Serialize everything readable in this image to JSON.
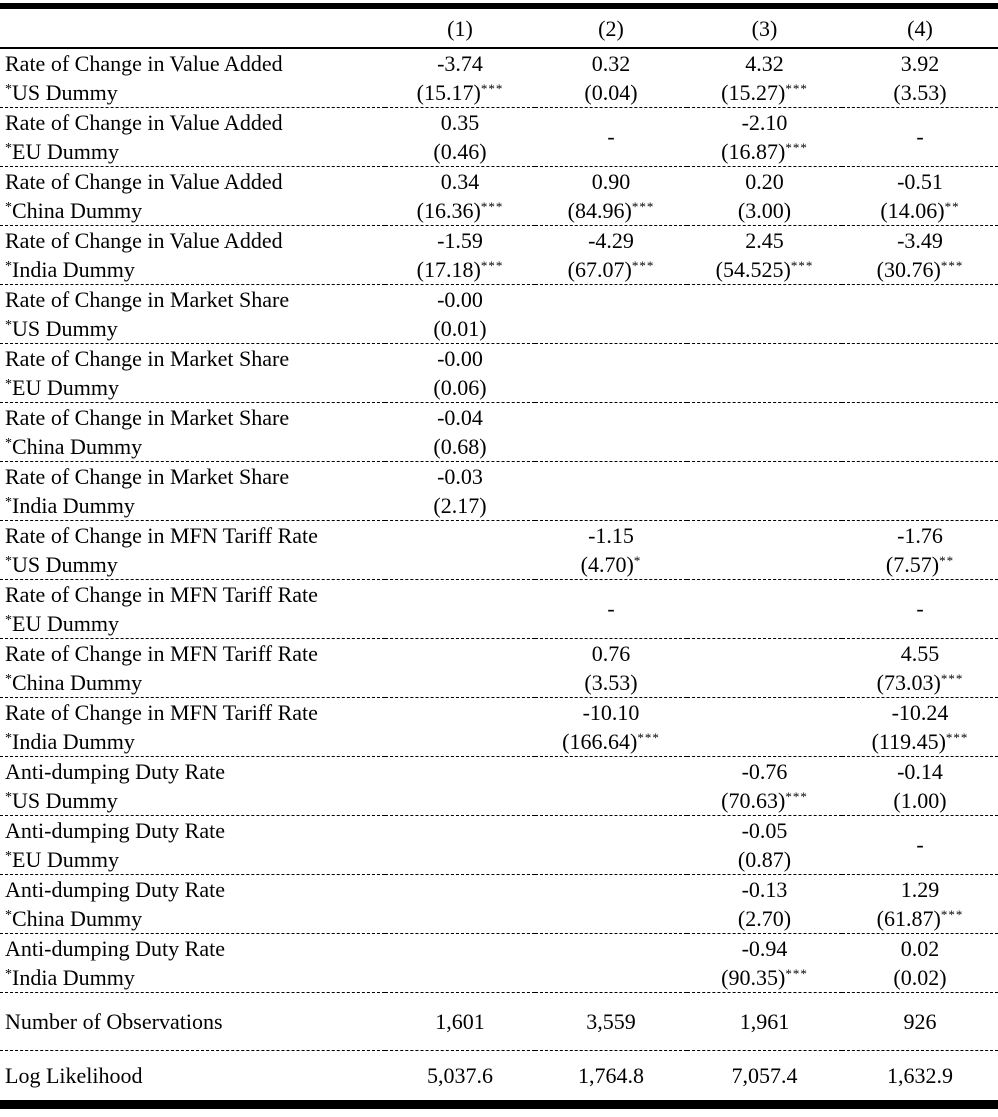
{
  "colors": {
    "text": "#000000",
    "background": "#ffffff",
    "rule": "#000000"
  },
  "table": {
    "column_headers": [
      "(1)",
      "(2)",
      "(3)",
      "(4)"
    ],
    "rows": [
      {
        "label1": "Rate of Change in Value Added",
        "label2": "*US Dummy",
        "cells": [
          {
            "v": "-3.74",
            "t": "(15.17)",
            "s": "***"
          },
          {
            "v": "0.32",
            "t": "(0.04)",
            "s": ""
          },
          {
            "v": "4.32",
            "t": "(15.27)",
            "s": "***"
          },
          {
            "v": "3.92",
            "t": "(3.53)",
            "s": ""
          }
        ]
      },
      {
        "label1": "Rate of Change in Value Added",
        "label2": "*EU Dummy",
        "cells": [
          {
            "v": "0.35",
            "t": "(0.46)",
            "s": ""
          },
          {
            "dash": "-"
          },
          {
            "v": "-2.10",
            "t": "(16.87)",
            "s": "***"
          },
          {
            "dash": "-"
          }
        ]
      },
      {
        "label1": "Rate of Change in Value Added",
        "label2": "*China Dummy",
        "cells": [
          {
            "v": "0.34",
            "t": "(16.36)",
            "s": "***"
          },
          {
            "v": "0.90",
            "t": "(84.96)",
            "s": "***"
          },
          {
            "v": "0.20",
            "t": "(3.00)",
            "s": ""
          },
          {
            "v": "-0.51",
            "t": "(14.06)",
            "s": "**"
          }
        ]
      },
      {
        "label1": "Rate of Change in Value Added",
        "label2": "*India Dummy",
        "cells": [
          {
            "v": "-1.59",
            "t": "(17.18)",
            "s": "***"
          },
          {
            "v": "-4.29",
            "t": "(67.07)",
            "s": "***"
          },
          {
            "v": "2.45",
            "t": "(54.525)",
            "s": "***"
          },
          {
            "v": "-3.49",
            "t": "(30.76)",
            "s": "***"
          }
        ]
      },
      {
        "label1": "Rate of Change in Market Share",
        "label2": "*US Dummy",
        "cells": [
          {
            "v": "-0.00",
            "t": "(0.01)",
            "s": ""
          },
          null,
          null,
          null
        ]
      },
      {
        "label1": "Rate of Change in Market Share",
        "label2": "*EU Dummy",
        "cells": [
          {
            "v": "-0.00",
            "t": "(0.06)",
            "s": ""
          },
          null,
          null,
          null
        ]
      },
      {
        "label1": "Rate of Change in Market Share",
        "label2": "*China Dummy",
        "cells": [
          {
            "v": "-0.04",
            "t": "(0.68)",
            "s": ""
          },
          null,
          null,
          null
        ]
      },
      {
        "label1": "Rate of Change in Market Share",
        "label2": "*India Dummy",
        "cells": [
          {
            "v": "-0.03",
            "t": "(2.17)",
            "s": ""
          },
          null,
          null,
          null
        ]
      },
      {
        "label1": "Rate of Change in MFN Tariff Rate",
        "label2": "*US Dummy",
        "cells": [
          null,
          {
            "v": "-1.15",
            "t": "(4.70)",
            "s": "*"
          },
          null,
          {
            "v": "-1.76",
            "t": "(7.57)",
            "s": "**"
          }
        ]
      },
      {
        "label1": "Rate of Change in MFN Tariff Rate",
        "label2": "*EU Dummy",
        "cells": [
          null,
          {
            "dash": "-"
          },
          null,
          {
            "dash": "-"
          }
        ]
      },
      {
        "label1": "Rate of Change in MFN Tariff Rate",
        "label2": "*China Dummy",
        "cells": [
          null,
          {
            "v": "0.76",
            "t": "(3.53)",
            "s": ""
          },
          null,
          {
            "v": "4.55",
            "t": "(73.03)",
            "s": "***"
          }
        ]
      },
      {
        "label1": "Rate of Change in MFN Tariff Rate",
        "label2": "*India Dummy",
        "cells": [
          null,
          {
            "v": "-10.10",
            "t": "(166.64)",
            "s": "***"
          },
          null,
          {
            "v": "-10.24",
            "t": "(119.45)",
            "s": "***"
          }
        ]
      },
      {
        "label1": "Anti-dumping Duty Rate",
        "label2": "*US Dummy",
        "cells": [
          null,
          null,
          {
            "v": "-0.76",
            "t": "(70.63)",
            "s": "***"
          },
          {
            "v": "-0.14",
            "t": "(1.00)",
            "s": ""
          }
        ]
      },
      {
        "label1": "Anti-dumping Duty Rate",
        "label2": "*EU Dummy",
        "cells": [
          null,
          null,
          {
            "v": "-0.05",
            "t": "(0.87)",
            "s": ""
          },
          {
            "dash": "-"
          }
        ]
      },
      {
        "label1": "Anti-dumping Duty Rate",
        "label2": "*China Dummy",
        "cells": [
          null,
          null,
          {
            "v": "-0.13",
            "t": "(2.70)",
            "s": ""
          },
          {
            "v": "1.29",
            "t": "(61.87)",
            "s": "***"
          }
        ]
      },
      {
        "label1": "Anti-dumping Duty Rate",
        "label2": "*India Dummy",
        "cells": [
          null,
          null,
          {
            "v": "-0.94",
            "t": "(90.35)",
            "s": "***"
          },
          {
            "v": "0.02",
            "t": "(0.02)",
            "s": ""
          }
        ]
      }
    ],
    "summary_rows": [
      {
        "label": "Number of Observations",
        "values": [
          "1,601",
          "3,559",
          "1,961",
          "926"
        ]
      },
      {
        "label": "Log Likelihood",
        "values": [
          "5,037.6",
          "1,764.8",
          "7,057.4",
          "1,632.9"
        ]
      }
    ]
  }
}
